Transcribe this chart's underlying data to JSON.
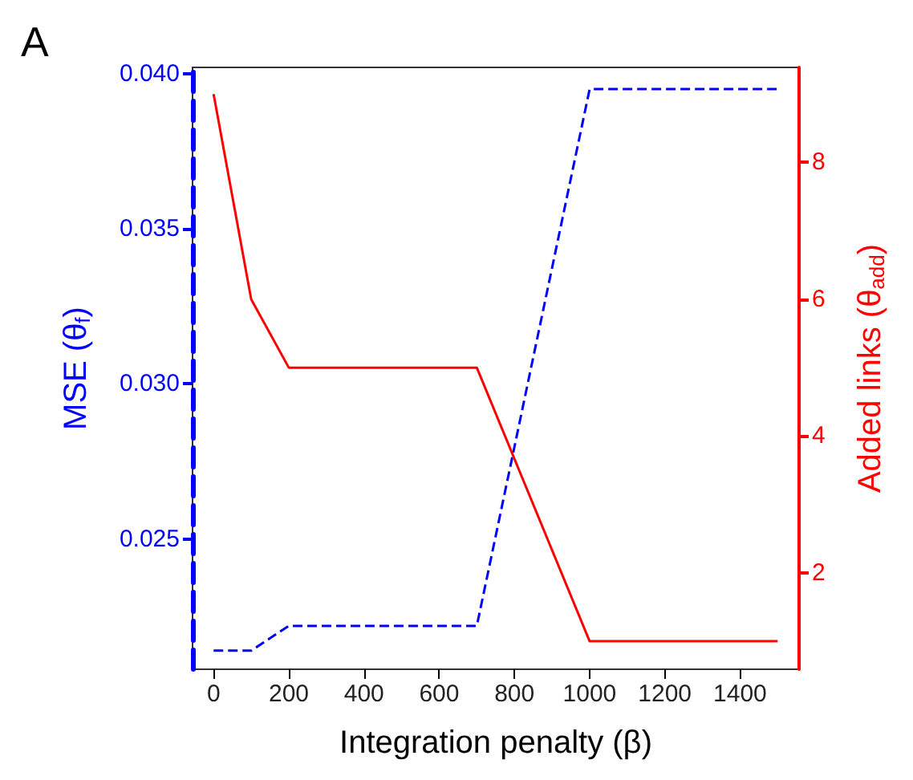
{
  "chart_data": {
    "type": "line",
    "title": "A",
    "xlabel": "Integration penalty (β)",
    "ylabel": "MSE (θ$_{f}$)",
    "y2label": "Added links (θ$_{add}$)",
    "x": [
      0,
      100,
      200,
      700,
      1000,
      1500
    ],
    "series": [
      {
        "color": "#0000ff",
        "line_style": "dashed",
        "values": [
          0.0214,
          0.0214,
          0.0222,
          0.0222,
          0.0395,
          0.0395
        ]
      },
      {
        "color": "#ff0000",
        "line_style": "solid",
        "axis": "y2",
        "values": [
          9,
          6,
          5,
          5,
          1,
          1
        ]
      }
    ],
    "xlim": [
      -56,
      1557
    ],
    "xticks": [
      0,
      200,
      400,
      600,
      800,
      1000,
      1200,
      1400
    ],
    "ylim": [
      0.0208,
      0.0402
    ],
    "yticks": [
      {
        "value": 0.025,
        "label": "0.025"
      },
      {
        "value": 0.03,
        "label": "0.030"
      },
      {
        "value": 0.035,
        "label": "0.035"
      },
      {
        "value": 0.04,
        "label": "0.040"
      }
    ],
    "y2lim": [
      0.59,
      9.39
    ],
    "y2ticks": [
      2,
      4,
      6,
      8
    ],
    "grid": false,
    "marker": "none"
  }
}
